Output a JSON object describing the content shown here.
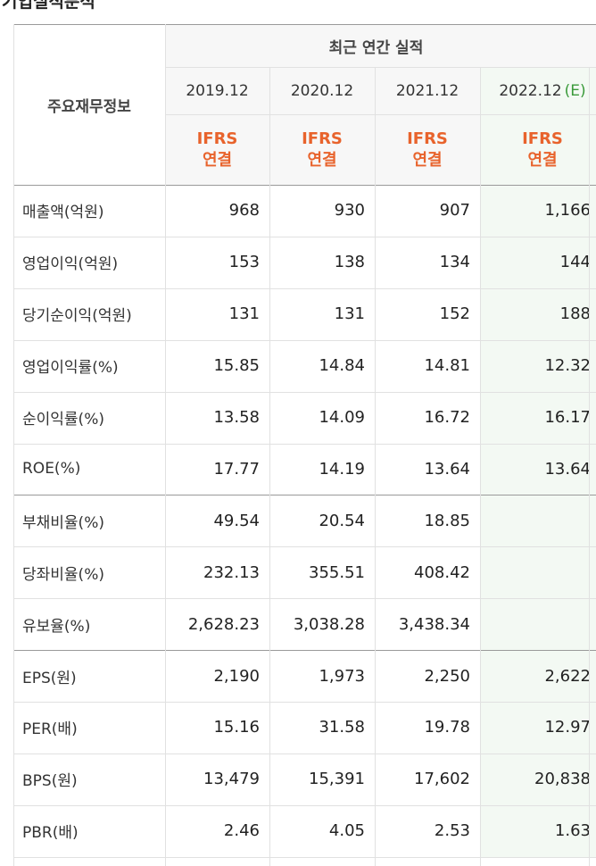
{
  "header": {
    "title": "기업실적분석"
  },
  "table": {
    "corner": "주요재무정보",
    "group": "최근 연간 실적",
    "columns": [
      {
        "date": "2019.12",
        "standard": [
          "IFRS",
          "연결"
        ]
      },
      {
        "date": "2020.12",
        "standard": [
          "IFRS",
          "연결"
        ]
      },
      {
        "date": "2021.12",
        "standard": [
          "IFRS",
          "연결"
        ]
      },
      {
        "date": "2022.12",
        "note": "(E)",
        "standard": [
          "IFRS",
          "연결"
        ]
      }
    ],
    "rows": [
      {
        "label": "매출액(억원)",
        "values": [
          "968",
          "930",
          "907",
          "1,166"
        ]
      },
      {
        "label": "영업이익(억원)",
        "values": [
          "153",
          "138",
          "134",
          "144"
        ]
      },
      {
        "label": "당기순이익(억원)",
        "values": [
          "131",
          "131",
          "152",
          "188"
        ]
      },
      {
        "label": "영업이익률(%)",
        "values": [
          "15.85",
          "14.84",
          "14.81",
          "12.32"
        ]
      },
      {
        "label": "순이익률(%)",
        "values": [
          "13.58",
          "14.09",
          "16.72",
          "16.17"
        ]
      },
      {
        "label": "ROE(%)",
        "values": [
          "17.77",
          "14.19",
          "13.64",
          "13.64"
        ]
      },
      {
        "label": "부채비율(%)",
        "values": [
          "49.54",
          "20.54",
          "18.85",
          null
        ]
      },
      {
        "label": "당좌비율(%)",
        "values": [
          "232.13",
          "355.51",
          "408.42",
          null
        ]
      },
      {
        "label": "유보율(%)",
        "values": [
          "2,628.23",
          "3,038.28",
          "3,438.34",
          null
        ]
      },
      {
        "label": "EPS(원)",
        "values": [
          "2,190",
          "1,973",
          "2,250",
          "2,622"
        ]
      },
      {
        "label": "PER(배)",
        "values": [
          "15.16",
          "31.58",
          "19.78",
          "12.97"
        ]
      },
      {
        "label": "BPS(원)",
        "values": [
          "13,479",
          "15,391",
          "17,602",
          "20,838"
        ]
      },
      {
        "label": "PBR(배)",
        "values": [
          "2.46",
          "4.05",
          "2.53",
          "1.63"
        ]
      }
    ]
  }
}
